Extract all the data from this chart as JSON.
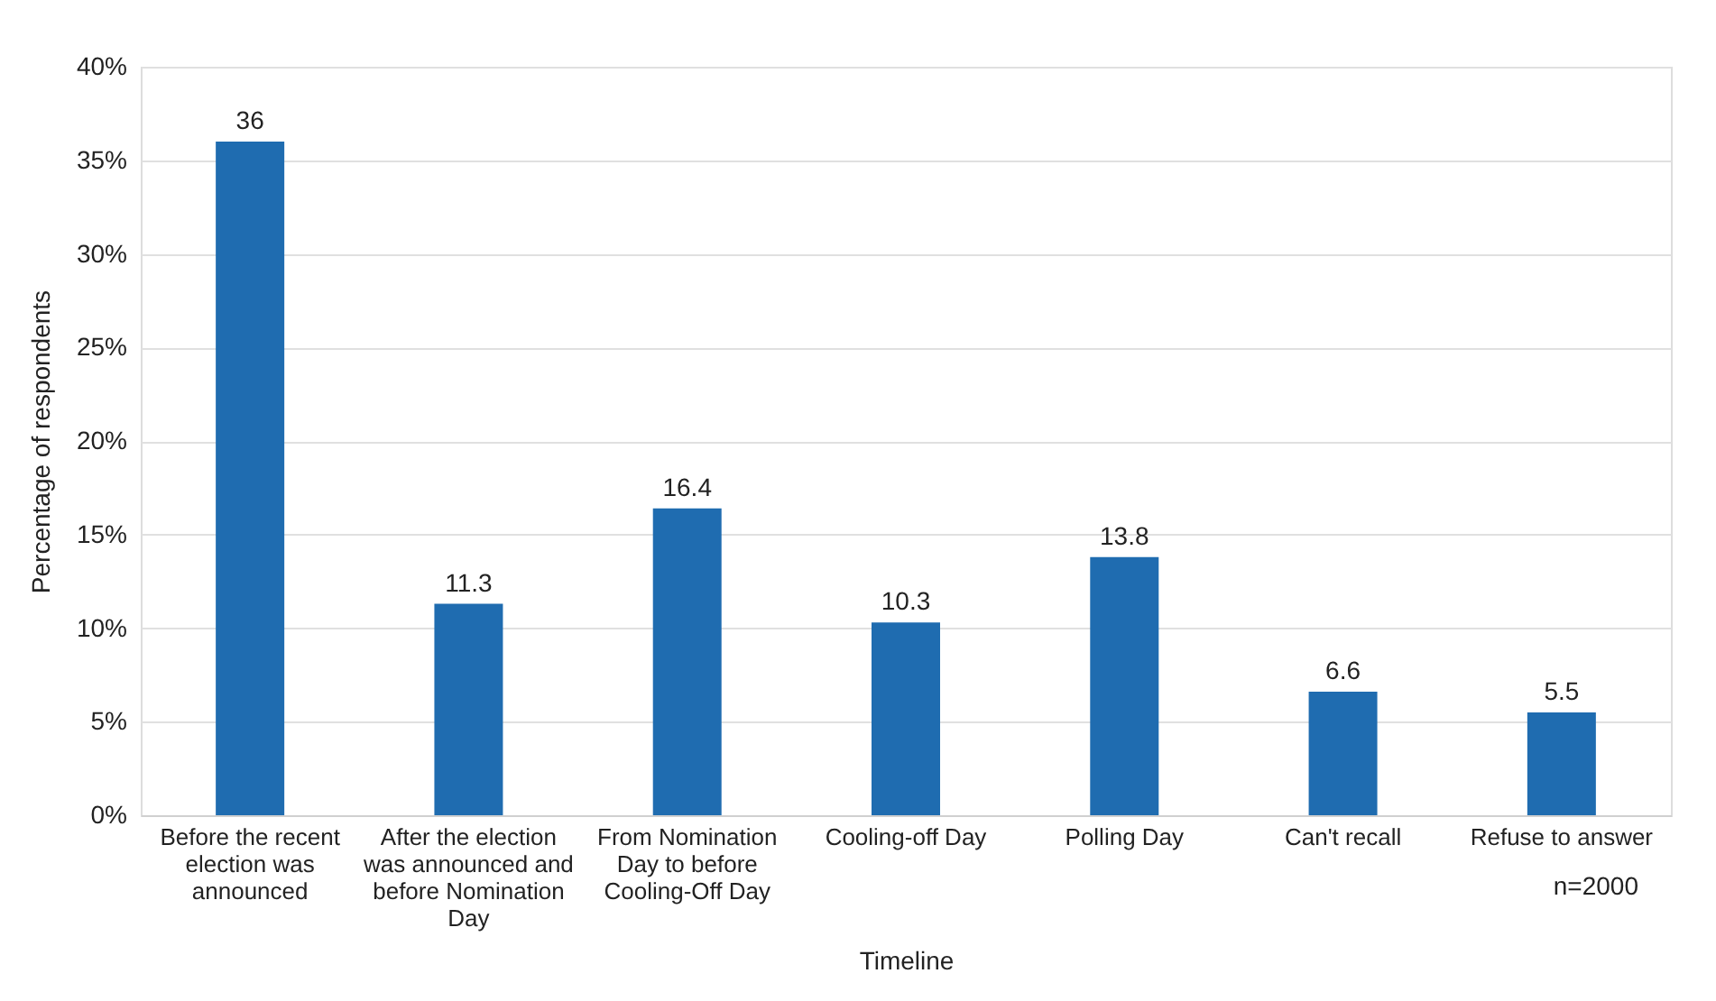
{
  "chart_data": {
    "type": "bar",
    "xlabel": "Timeline",
    "ylabel": "Percentage of respondents",
    "categories": [
      "Before the recent election was announced",
      "After the election was announced and before Nomination Day",
      "From Nomination Day to before Cooling-Off Day",
      "Cooling-off Day",
      "Polling Day",
      "Can't recall",
      "Refuse to answer"
    ],
    "values": [
      36,
      11.3,
      16.4,
      10.3,
      13.8,
      6.6,
      5.5
    ],
    "color": "#1f6cb0",
    "ylim": [
      0,
      40
    ],
    "yticks": [
      {
        "value": 0,
        "label": "0%"
      },
      {
        "value": 5,
        "label": "5%"
      },
      {
        "value": 10,
        "label": "10%"
      },
      {
        "value": 15,
        "label": "15%"
      },
      {
        "value": 20,
        "label": "20%"
      },
      {
        "value": 25,
        "label": "25%"
      },
      {
        "value": 30,
        "label": "30%"
      },
      {
        "value": 35,
        "label": "35%"
      },
      {
        "value": 40,
        "label": "40%"
      }
    ],
    "grid": "y",
    "data_labels": true,
    "annotations": [
      "n=2000"
    ]
  }
}
